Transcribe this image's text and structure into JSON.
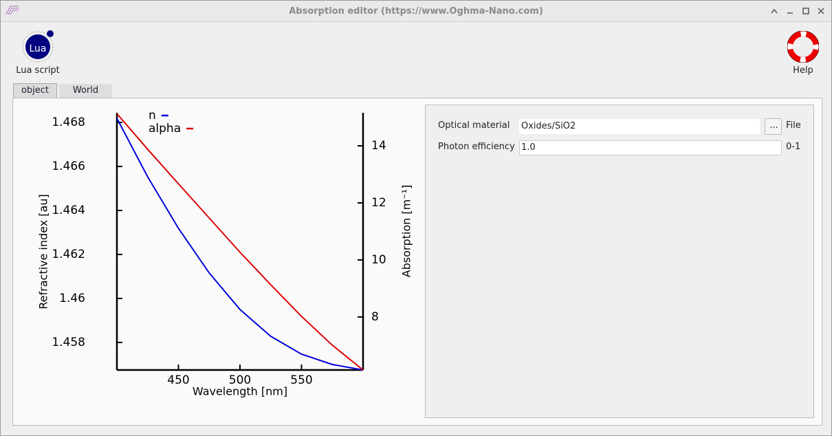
{
  "window": {
    "title": "Absorption editor (https://www.Oghma-Nano.com)"
  },
  "toolbar": {
    "lua_icon": "Lua",
    "lua": "Lua script",
    "help": "Help"
  },
  "tabs": [
    "object",
    "World"
  ],
  "chart_data": {
    "type": "line",
    "x_label": "Wavelength [nm]",
    "y_label": "Refractive index [au]",
    "y2_label": "Absorption [m⁻¹]",
    "x": [
      400,
      425,
      450,
      475,
      500,
      525,
      550,
      575,
      600
    ],
    "series": [
      {
        "name": "n",
        "color": "#0000dd",
        "values": [
          1.46819,
          1.46553,
          1.46319,
          1.46116,
          1.4595,
          1.45828,
          1.45747,
          1.457,
          1.45675
        ]
      },
      {
        "name": "alpha",
        "color": "#dd0000",
        "axis": "y2",
        "values": [
          15.13,
          13.88,
          12.67,
          11.47,
          10.27,
          9.13,
          8.02,
          7.01,
          6.14
        ]
      }
    ],
    "xlim": [
      400,
      600
    ],
    "xticks": [
      450,
      500,
      550
    ],
    "ylim": [
      1.45675,
      1.46844
    ],
    "yticks": [
      1.458,
      1.46,
      1.462,
      1.464,
      1.466,
      1.468
    ],
    "y2lim": [
      6.14,
      15.16
    ],
    "y2ticks": [
      8,
      10,
      12,
      14
    ],
    "grid": false,
    "legend": "upper left"
  },
  "form": {
    "rows": [
      {
        "label": "Optical material",
        "value": "Oxides/SiO2",
        "button": "...",
        "unit": "File"
      },
      {
        "label": "Photon efficiency",
        "value": "1.0",
        "unit": "0-1"
      }
    ]
  }
}
